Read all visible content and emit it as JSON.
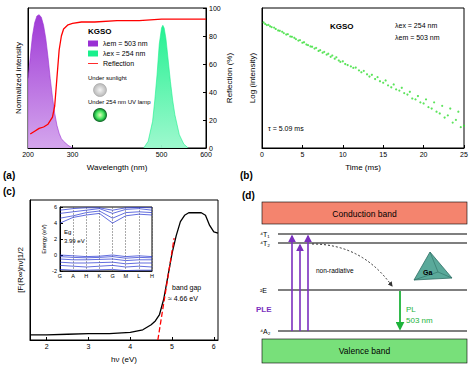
{
  "chart_data": [
    {
      "panel": "(a)",
      "type": "line",
      "xlabel": "Wavelength (nm)",
      "ylabel": "Normalized intensity",
      "y2label": "Reflection (%)",
      "xlim": [
        200,
        600
      ],
      "xticks": [
        200,
        300,
        500,
        600
      ],
      "ylim": [
        0,
        1.05
      ],
      "y2lim": [
        0,
        100
      ],
      "y2ticks": [
        0,
        20,
        40,
        60,
        80,
        100
      ],
      "legend": "center",
      "annotations": [
        "KGSO",
        "Under sunlight",
        "Under 254 nm UV lamp"
      ],
      "series": [
        {
          "name": "λem = 503 nm",
          "type": "area",
          "color": "#9a2fd4",
          "x": [
            200,
            205,
            210,
            215,
            220,
            225,
            230,
            235,
            240,
            245,
            250,
            255,
            260,
            265,
            270,
            275,
            280,
            290,
            300
          ],
          "values": [
            0.52,
            0.68,
            0.84,
            0.94,
            0.99,
            1.0,
            0.98,
            0.92,
            0.82,
            0.68,
            0.52,
            0.38,
            0.26,
            0.17,
            0.11,
            0.07,
            0.05,
            0.02,
            0
          ]
        },
        {
          "name": "λex = 254 nm",
          "type": "area",
          "color": "#19f08c",
          "x": [
            460,
            470,
            480,
            485,
            490,
            495,
            500,
            503,
            506,
            510,
            515,
            520,
            525,
            530,
            540,
            550,
            560
          ],
          "values": [
            0,
            0.05,
            0.2,
            0.36,
            0.55,
            0.78,
            0.9,
            0.92,
            0.9,
            0.82,
            0.66,
            0.5,
            0.36,
            0.25,
            0.1,
            0.03,
            0
          ]
        },
        {
          "name": "Reflection",
          "type": "line",
          "color": "#ff0000",
          "axis": "y2",
          "x": [
            205,
            215,
            225,
            235,
            245,
            255,
            260,
            265,
            270,
            275,
            280,
            290,
            300,
            320,
            350,
            400,
            450,
            500,
            550,
            600
          ],
          "values": [
            10,
            12,
            14,
            15,
            17,
            22,
            30,
            50,
            70,
            80,
            85,
            88,
            89,
            90,
            90,
            91,
            91,
            92,
            92,
            92
          ]
        }
      ]
    },
    {
      "panel": "(b)",
      "type": "scatter",
      "xlabel": "Time (ms)",
      "ylabel": "Log (intensity)",
      "log": "y",
      "xlim": [
        0,
        25
      ],
      "xticks": [
        0,
        5,
        10,
        15,
        20,
        25
      ],
      "ylim": [
        10,
        10000
      ],
      "tick_labels": "x",
      "color": "#33dd33",
      "marker": "circle",
      "annotations": [
        "KGSO",
        "λex = 254 nm",
        "λem = 503 nm",
        "τ = 5.09 ms"
      ],
      "x": [
        0.2,
        0.4,
        0.6,
        0.8,
        1.0,
        1.2,
        1.5,
        1.7,
        2.0,
        2.2,
        2.5,
        2.7,
        3.0,
        3.2,
        3.5,
        3.7,
        4.0,
        4.2,
        4.5,
        4.7,
        5.0,
        5.2,
        5.5,
        5.7,
        6.0,
        6.2,
        6.5,
        6.7,
        7.0,
        7.2,
        7.5,
        7.7,
        8.0,
        8.2,
        8.5,
        8.7,
        9.0,
        9.2,
        9.5,
        9.7,
        10,
        10.3,
        10.6,
        11,
        11.3,
        11.6,
        12,
        12.3,
        12.6,
        13,
        13.3,
        13.6,
        14,
        14.3,
        14.6,
        15,
        15.3,
        15.6,
        16,
        16.3,
        16.6,
        17,
        17.3,
        17.6,
        18,
        18.3,
        18.6,
        19,
        19.3,
        19.6,
        20,
        20.3,
        20.6,
        21,
        21.3,
        21.6,
        22,
        22.3,
        22.6,
        23,
        23.3,
        23.6,
        24,
        24.3,
        24.6,
        25
      ],
      "values": [
        4900,
        4550,
        4300,
        4350,
        4050,
        3900,
        3800,
        3550,
        3300,
        3250,
        3100,
        2900,
        2700,
        2750,
        2450,
        2420,
        2300,
        2150,
        2000,
        2050,
        1800,
        1850,
        1650,
        1600,
        1500,
        1480,
        1350,
        1400,
        1200,
        1250,
        1100,
        1150,
        1000,
        1050,
        900,
        960,
        820,
        880,
        750,
        700,
        720,
        630,
        600,
        560,
        520,
        530,
        460,
        420,
        450,
        380,
        340,
        370,
        300,
        330,
        270,
        250,
        280,
        220,
        200,
        230,
        180,
        170,
        195,
        150,
        140,
        160,
        115,
        110,
        130,
        95,
        90,
        110,
        75,
        70,
        95,
        60,
        55,
        80,
        45,
        50,
        70,
        35,
        40,
        60,
        28,
        30
      ]
    },
    {
      "panel": "(c)",
      "type": "line",
      "xlabel": "hν (eV)",
      "ylabel": "[F(R∞)hν]1/2",
      "xlim": [
        1.6,
        6.1
      ],
      "xticks": [
        2,
        3,
        4,
        5,
        6
      ],
      "ylim": [
        0,
        1.1
      ],
      "tick_labels": "x",
      "annotations": [
        "band gap",
        "≈ 4.66 eV"
      ],
      "series": [
        {
          "color": "#000000",
          "x": [
            1.6,
            2.0,
            2.5,
            3.0,
            3.5,
            4.0,
            4.3,
            4.5,
            4.6,
            4.7,
            4.8,
            4.9,
            5.0,
            5.1,
            5.2,
            5.3,
            5.4,
            5.5,
            5.6,
            5.7,
            5.8,
            5.9,
            6.0,
            6.1
          ],
          "values": [
            0.04,
            0.04,
            0.045,
            0.05,
            0.05,
            0.06,
            0.08,
            0.12,
            0.15,
            0.2,
            0.32,
            0.5,
            0.68,
            0.82,
            0.93,
            0.98,
            1.0,
            1.0,
            1.0,
            1.0,
            0.98,
            0.9,
            0.85,
            0.84
          ]
        },
        {
          "color": "#ff0000",
          "line_style": "dashed",
          "x": [
            4.66,
            5.05
          ],
          "values": [
            0,
            0.8
          ]
        }
      ],
      "inset": {
        "type": "line",
        "ylabel": "Energy (eV)",
        "categories": [
          "G",
          "A",
          "H",
          "K",
          "G",
          "M",
          "L",
          "H"
        ],
        "ylim": [
          -2,
          6
        ],
        "yticks": [
          -2,
          0,
          2,
          4,
          6
        ],
        "color": "#1f2fd0",
        "annotations": [
          "Eg",
          "3.99 eV"
        ],
        "series": [
          {
            "values": [
              3.99,
              4.7,
              5.0,
              5.2,
              3.99,
              4.9,
              5.1,
              5.0
            ]
          },
          {
            "values": [
              4.6,
              4.9,
              5.3,
              5.5,
              4.6,
              5.3,
              5.4,
              5.3
            ]
          },
          {
            "values": [
              5.2,
              5.4,
              5.6,
              5.8,
              5.2,
              5.7,
              5.8,
              5.6
            ]
          },
          {
            "values": [
              5.6,
              5.8,
              5.9,
              5.9,
              5.6,
              5.9,
              5.95,
              5.9
            ]
          },
          {
            "values": [
              0,
              -0.1,
              -0.2,
              -0.15,
              0,
              -0.2,
              -0.1,
              -0.2
            ]
          },
          {
            "values": [
              -0.2,
              -0.3,
              -0.35,
              -0.3,
              -0.2,
              -0.4,
              -0.3,
              -0.35
            ]
          },
          {
            "values": [
              -0.5,
              -0.6,
              -0.6,
              -0.55,
              -0.5,
              -0.7,
              -0.6,
              -0.6
            ]
          },
          {
            "values": [
              -0.9,
              -1.0,
              -1.0,
              -0.95,
              -0.9,
              -1.1,
              -1.0,
              -1.0
            ]
          },
          {
            "values": [
              -1.3,
              -1.4,
              -1.5,
              -1.4,
              -1.3,
              -1.5,
              -1.4,
              -1.5
            ]
          },
          {
            "values": [
              -1.8,
              -1.9,
              -1.9,
              -1.85,
              -1.8,
              -1.95,
              -1.9,
              -1.9
            ]
          }
        ]
      }
    }
  ],
  "diagram": {
    "panel": "(d)",
    "bands": {
      "conduction": "Conduction band",
      "valence": "Valence band"
    },
    "levels": [
      "⁴T₁",
      "⁴T₂",
      "²E",
      "⁴A₂"
    ],
    "labels": {
      "excitation": "PLE",
      "relaxation": "non-radiative",
      "emission": "PL",
      "emission_wavelength": "503 nm",
      "ion": "Ga"
    }
  }
}
